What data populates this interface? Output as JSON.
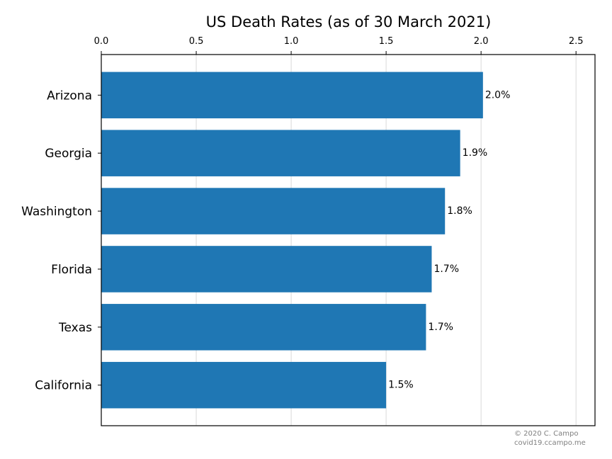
{
  "chart_data": {
    "type": "bar",
    "orientation": "horizontal",
    "title": "US Death Rates (as of 30 March 2021)",
    "xlabel": "",
    "ylabel": "",
    "xlim": [
      0,
      2.6
    ],
    "x_ticks": [
      "0.0",
      "0.5",
      "1.0",
      "1.5",
      "2.0",
      "2.5"
    ],
    "x_tick_values": [
      0,
      0.5,
      1.0,
      1.5,
      2.0,
      2.5
    ],
    "x_axis_position": "top",
    "grid": "vertical",
    "categories": [
      "Arizona",
      "Georgia",
      "Washington",
      "Florida",
      "Texas",
      "California"
    ],
    "values": [
      2.01,
      1.89,
      1.81,
      1.74,
      1.71,
      1.5
    ],
    "value_labels": [
      "2.0%",
      "1.9%",
      "1.8%",
      "1.7%",
      "1.7%",
      "1.5%"
    ],
    "bar_color": "#1f77b4",
    "grid_color": "#d9d9d9"
  },
  "credit": {
    "line1": "© 2020 C. Campo",
    "line2": "covid19.ccampo.me"
  }
}
